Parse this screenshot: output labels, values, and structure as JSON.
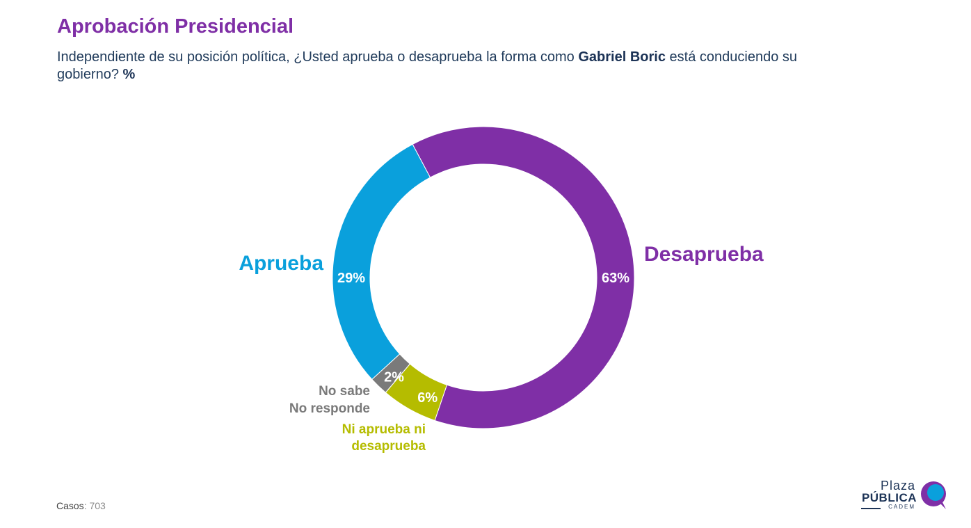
{
  "header": {
    "title": "Aprobación Presidencial",
    "subtitle_pre": "Independiente de su posición política, ¿Usted aprueba o desaprueba la forma como ",
    "subtitle_bold": "Gabriel Boric",
    "subtitle_post": " está conduciendo su gobierno? ",
    "subtitle_pct": "%"
  },
  "chart_data": {
    "type": "pie",
    "title": "Aprobación Presidencial",
    "slices": [
      {
        "label": "Aprueba",
        "value": 29,
        "display": "29%",
        "color": "#0aa0dc"
      },
      {
        "label": "No sabe No responde",
        "value": 2,
        "display": "2%",
        "color": "#7a7a7a"
      },
      {
        "label": "Ni aprueba ni desaprueba",
        "value": 6,
        "display": "6%",
        "color": "#b5bc00"
      },
      {
        "label": "Desaprueba",
        "value": 63,
        "display": "63%",
        "color": "#7f2fa6"
      }
    ]
  },
  "labels": {
    "aprueba": "Aprueba",
    "desaprueba": "Desaprueba",
    "nsnr_line1": "No sabe",
    "nsnr_line2": "No responde",
    "ni_line1": "Ni aprueba ni",
    "ni_line2": "desaprueba"
  },
  "footer": {
    "casos_label": "Casos",
    "casos_value": ": 703"
  },
  "logo": {
    "line1": "Plaza",
    "line2": "PÚBLICA",
    "line3": "CADEM",
    "accent": "#7f2fa6",
    "accent2": "#0aa0dc"
  }
}
